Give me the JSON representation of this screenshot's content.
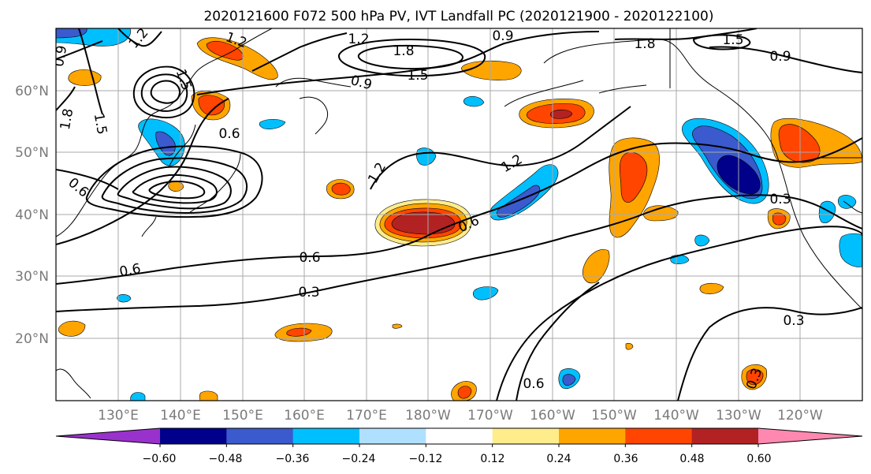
{
  "title": "2020121600 F072 500 hPa PV, IVT Landfall PC (2020121900 - 2020122100)",
  "lon_ticks": [
    "130°E",
    "140°E",
    "150°E",
    "160°E",
    "170°E",
    "180°W",
    "170°W",
    "160°W",
    "150°W",
    "140°W",
    "130°W",
    "120°W"
  ],
  "lat_ticks": [
    "60°N",
    "50°N",
    "40°N",
    "30°N",
    "20°N"
  ],
  "colorbar": {
    "tick_labels": [
      "−0.60",
      "−0.48",
      "−0.36",
      "−0.24",
      "−0.12",
      "0.12",
      "0.24",
      "0.36",
      "0.48",
      "0.60"
    ],
    "boundaries": [
      -0.6,
      -0.48,
      -0.36,
      -0.24,
      -0.12,
      0.12,
      0.24,
      0.36,
      0.48,
      0.6
    ],
    "colors": [
      "#9932CC",
      "#00008B",
      "#3A5ACD",
      "#00BFFF",
      "#B0E0FF",
      "#FFFFFF",
      "#FFEC8B",
      "#FFA500",
      "#FF4500",
      "#B22222",
      "#FF88B0"
    ],
    "extend": "both"
  },
  "contour_labels": [
    "1.2",
    "1.2",
    "0.9",
    "1.5",
    "1.2",
    "0.9",
    "1.8",
    "1.5",
    "0.9",
    "0.9",
    "1.8",
    "1.5",
    "1.8",
    "1.5",
    "0.6",
    "0.6",
    "0.6",
    "1.2",
    "1.2",
    "0.6",
    "0.6",
    "0.3",
    "0.3",
    "0.6",
    "0.3",
    "0.3"
  ],
  "map": {
    "projection": "PlateCarree",
    "extent_lon": [
      120,
      250
    ],
    "extent_lat": [
      10,
      70
    ],
    "gridlines": true,
    "coastlines": true
  }
}
